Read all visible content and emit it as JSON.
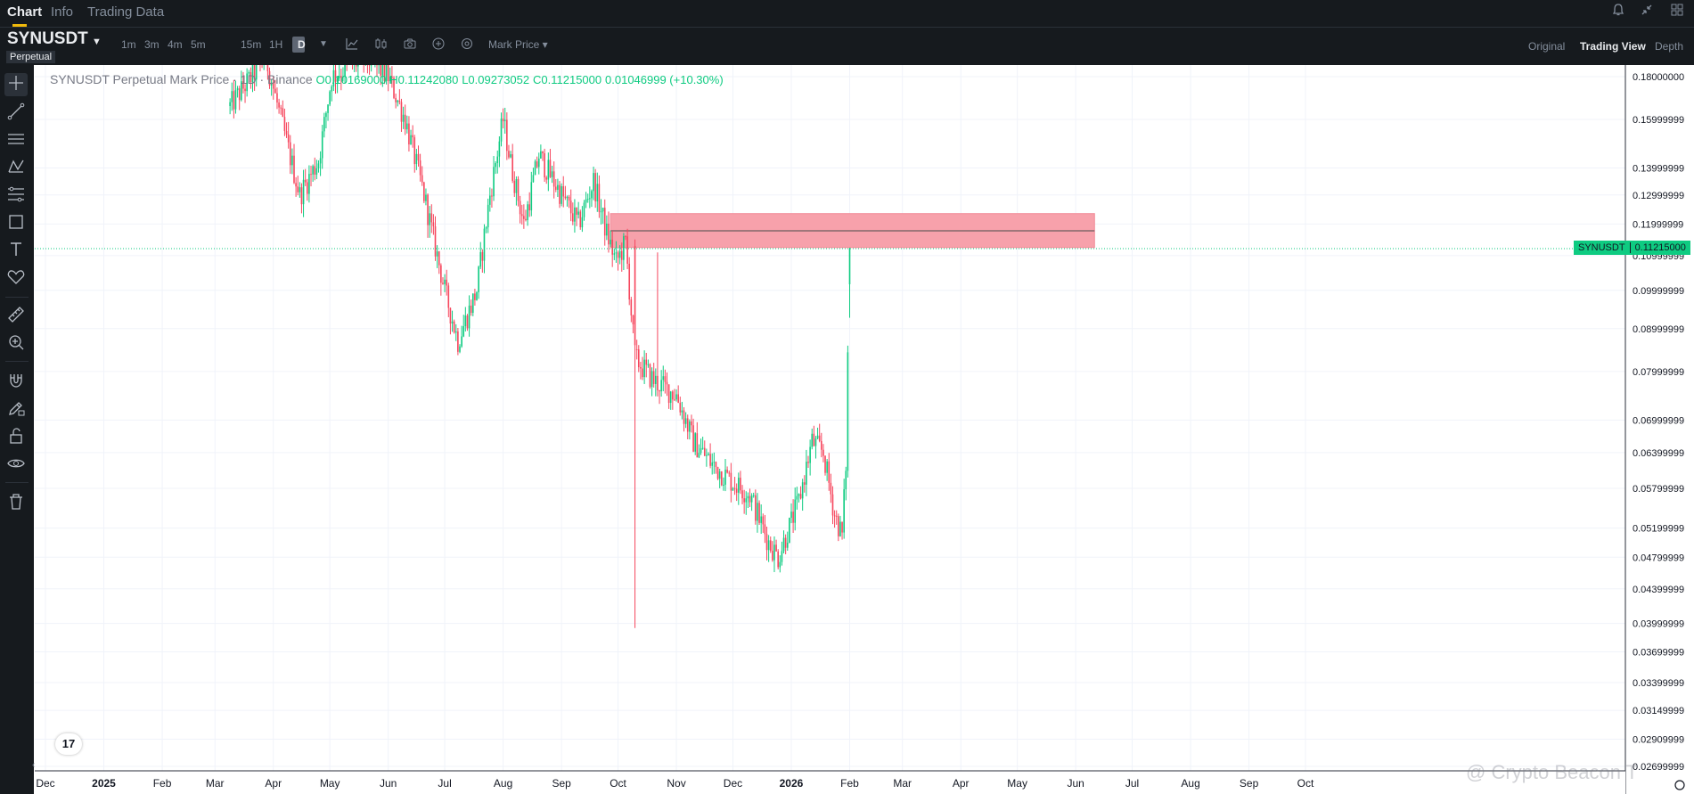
{
  "header": {
    "tabs": [
      {
        "label": "Chart",
        "active": true
      },
      {
        "label": "Info",
        "active": false
      },
      {
        "label": "Trading Data",
        "active": false
      }
    ]
  },
  "toolbar": {
    "symbol": "SYNUSDT",
    "badge": "Perpetual",
    "intervals": [
      "1m",
      "3m",
      "5m",
      "15m",
      "1H",
      "D"
    ],
    "active_interval": "D",
    "price_type": "Mark Price",
    "views": [
      "Original",
      "Trading View",
      "Depth"
    ],
    "active_view": "Trading View"
  },
  "sidebar": {
    "tools": [
      "crosshair-icon",
      "trend-line-icon",
      "horizontal-lines-icon",
      "pattern-icon",
      "fib-icon",
      "rectangle-icon",
      "text-icon",
      "heart-icon",
      "ruler-icon",
      "zoom-in-icon",
      "magnet-icon",
      "pencil-lock-icon",
      "unlock-icon",
      "eye-icon",
      "trash-icon"
    ]
  },
  "legend": {
    "title": "SYNUSDT Perpetual Mark Price · 1D · Binance",
    "open": "O0.10169000",
    "high": "H0.11242080",
    "low": "L0.09273052",
    "close": "C0.11215000",
    "change": "0.01046999 (+10.30%)"
  },
  "price_label": {
    "symbol": "SYNUSDT",
    "price": "0.11215000"
  },
  "watermark": "@ Crypto Beacon T",
  "colors": {
    "up": "#0ecb81",
    "down": "#f6465d",
    "zone_fill": "#f7a1ab",
    "background": "#ffffff",
    "panel": "#161a1e"
  },
  "chart_data": {
    "type": "candlestick",
    "title": "SYNUSDT Perpetual Mark Price · 1D · Binance",
    "y_scale": "log",
    "y_ticks": [
      "0.18000000",
      "0.15999999",
      "0.13999999",
      "0.12999999",
      "0.11999999",
      "0.10999999",
      "0.09999999",
      "0.08999999",
      "0.07999999",
      "0.06999999",
      "0.06399999",
      "0.05799999",
      "0.05199999",
      "0.04799999",
      "0.04399999",
      "0.03999999",
      "0.03699999",
      "0.03399999",
      "0.03149999",
      "0.02909999",
      "0.02699999"
    ],
    "x_ticks": [
      {
        "label": "Dec",
        "date": "2024-12-01"
      },
      {
        "label": "2025",
        "date": "2025-01-01",
        "bold": true
      },
      {
        "label": "Feb",
        "date": "2025-02-01"
      },
      {
        "label": "Mar",
        "date": "2025-03-01"
      },
      {
        "label": "Apr",
        "date": "2025-04-01"
      },
      {
        "label": "May",
        "date": "2025-05-01"
      },
      {
        "label": "Jun",
        "date": "2025-06-01"
      },
      {
        "label": "Jul",
        "date": "2025-07-01"
      },
      {
        "label": "Aug",
        "date": "2025-08-01"
      },
      {
        "label": "Sep",
        "date": "2025-09-01"
      },
      {
        "label": "Oct",
        "date": "2025-10-01"
      },
      {
        "label": "Nov",
        "date": "2025-11-01"
      },
      {
        "label": "Dec",
        "date": "2025-12-01"
      },
      {
        "label": "2026",
        "date": "2026-01-01",
        "bold": true
      },
      {
        "label": "Feb",
        "date": "2026-02-01"
      },
      {
        "label": "Mar",
        "date": "2026-03-01"
      },
      {
        "label": "Apr",
        "date": "2026-04-01"
      },
      {
        "label": "May",
        "date": "2026-05-01"
      },
      {
        "label": "Jun",
        "date": "2026-06-01"
      },
      {
        "label": "Jul",
        "date": "2026-07-01"
      },
      {
        "label": "Aug",
        "date": "2026-08-01"
      },
      {
        "label": "Sep",
        "date": "2026-09-01"
      },
      {
        "label": "Oct",
        "date": "2026-10-01"
      }
    ],
    "resistance_zone": {
      "start": "2025-09-27",
      "end": "2026-06-11",
      "low": 0.1125,
      "high": 0.1235,
      "mid": 0.1178
    },
    "last_price": 0.11215,
    "path": [
      {
        "date": "2025-03-09",
        "price": 0.166
      },
      {
        "date": "2025-03-28",
        "price": 0.19
      },
      {
        "date": "2025-04-05",
        "price": 0.16
      },
      {
        "date": "2025-04-15",
        "price": 0.13
      },
      {
        "date": "2025-04-25",
        "price": 0.143
      },
      {
        "date": "2025-05-02",
        "price": 0.18
      },
      {
        "date": "2025-05-20",
        "price": 0.19
      },
      {
        "date": "2025-06-01",
        "price": 0.18
      },
      {
        "date": "2025-06-10",
        "price": 0.16
      },
      {
        "date": "2025-06-20",
        "price": 0.13
      },
      {
        "date": "2025-07-01",
        "price": 0.1
      },
      {
        "date": "2025-07-08",
        "price": 0.087
      },
      {
        "date": "2025-07-18",
        "price": 0.1
      },
      {
        "date": "2025-07-25",
        "price": 0.13
      },
      {
        "date": "2025-08-01",
        "price": 0.16
      },
      {
        "date": "2025-08-05",
        "price": 0.142
      },
      {
        "date": "2025-08-12",
        "price": 0.12
      },
      {
        "date": "2025-08-20",
        "price": 0.145
      },
      {
        "date": "2025-09-01",
        "price": 0.13
      },
      {
        "date": "2025-09-10",
        "price": 0.12
      },
      {
        "date": "2025-09-18",
        "price": 0.135
      },
      {
        "date": "2025-09-25",
        "price": 0.117
      },
      {
        "date": "2025-09-30",
        "price": 0.108
      },
      {
        "date": "2025-10-05",
        "price": 0.114
      },
      {
        "date": "2025-10-10",
        "price": 0.083
      },
      {
        "date": "2025-10-20",
        "price": 0.078
      },
      {
        "date": "2025-11-01",
        "price": 0.075
      },
      {
        "date": "2025-11-10",
        "price": 0.066
      },
      {
        "date": "2025-11-20",
        "price": 0.062
      },
      {
        "date": "2025-12-01",
        "price": 0.059
      },
      {
        "date": "2025-12-10",
        "price": 0.057
      },
      {
        "date": "2025-12-20",
        "price": 0.05
      },
      {
        "date": "2025-12-25",
        "price": 0.048
      },
      {
        "date": "2026-01-05",
        "price": 0.056
      },
      {
        "date": "2026-01-12",
        "price": 0.066
      },
      {
        "date": "2026-01-18",
        "price": 0.064
      },
      {
        "date": "2026-01-24",
        "price": 0.054
      },
      {
        "date": "2026-01-28",
        "price": 0.051
      },
      {
        "date": "2026-01-30",
        "price": 0.062
      },
      {
        "date": "2026-02-01",
        "price": 0.112
      }
    ]
  }
}
